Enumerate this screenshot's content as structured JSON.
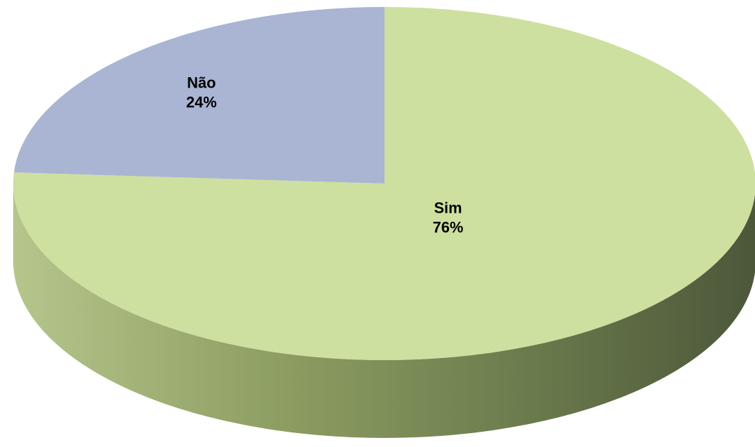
{
  "chart_data": {
    "type": "pie",
    "style": "3d",
    "slices": [
      {
        "label": "Sim",
        "value": 76,
        "value_label": "76%",
        "color": "#cde09f",
        "side_color": "#9aaa6e"
      },
      {
        "label": "Não",
        "value": 24,
        "value_label": "24%",
        "color": "#aab4d3",
        "side_color": "#7d87a8"
      }
    ],
    "legend": "none"
  }
}
